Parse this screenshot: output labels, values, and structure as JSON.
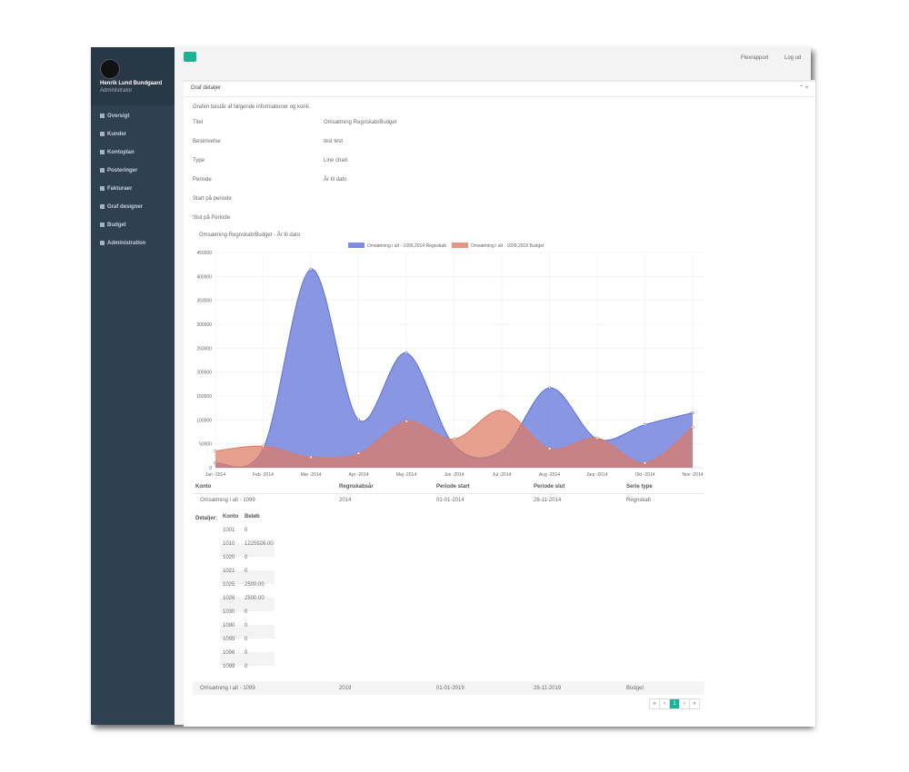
{
  "sidebar": {
    "user_name": "Henrik Lund Bundgaard",
    "user_role": "Administrator",
    "menu": [
      "Oversigt",
      "Kunder",
      "Kontoplan",
      "Posteringer",
      "Fakturaer",
      "Graf designer",
      "Budget",
      "Administration"
    ]
  },
  "topbar": {
    "links": [
      "Flexrapport",
      "Log ud"
    ]
  },
  "panel": {
    "title": "Graf detaljer",
    "intro": "Grafen består af følgende informationer og konti.",
    "fields": [
      {
        "label": "Titel",
        "value": "Omsætning Regnskab/Budget"
      },
      {
        "label": "Beskrivelse",
        "value": "test test"
      },
      {
        "label": "Type",
        "value": "Line chart"
      },
      {
        "label": "Periode",
        "value": "År til dato"
      },
      {
        "label": "Start på periode"
      },
      {
        "label": "Slut på Periode"
      }
    ],
    "chart_title": "Omsætning Regnskab/Budget - År til dato"
  },
  "chart_data": {
    "type": "line",
    "categories": [
      "Jan -2014",
      "Feb -2014",
      "Mar -2014",
      "Apr -2014",
      "Maj -2014",
      "Jun -2014",
      "Jul -2014",
      "Aug -2014",
      "Sep -2014",
      "Okt -2014",
      "Nov -2014"
    ],
    "series": [
      {
        "name": "Omsætning i alt - 1099,2014 Regnskab",
        "color": "#5b6fd8",
        "values": [
          10000,
          40000,
          415000,
          100000,
          240000,
          47000,
          35000,
          167000,
          60000,
          90000,
          115000
        ]
      },
      {
        "name": "Omsætning i alt - 1099,2019 Budget",
        "color": "#de7a62",
        "values": [
          35000,
          45000,
          22000,
          30000,
          97000,
          60000,
          120000,
          40000,
          62000,
          10000,
          85000
        ]
      }
    ],
    "ylim": [
      0,
      450000
    ],
    "yticks": [
      0,
      50000,
      100000,
      150000,
      200000,
      250000,
      300000,
      350000,
      400000,
      450000
    ],
    "grid": true,
    "legend": "top"
  },
  "table": {
    "headers": [
      "Konto",
      "Regnskabsår",
      "Periode start",
      "Periode slut",
      "Serie type"
    ],
    "rows": [
      [
        "Omsætning i alt - 1099",
        "2014",
        "01-01-2014",
        "28-11-2014",
        "Regnskab"
      ],
      [
        "Omsætning i alt - 1099",
        "2019",
        "01-01-2019",
        "28-11-2019",
        "Budget"
      ]
    ],
    "details_label": "Detaljer:",
    "details_headers": [
      "Konto",
      "Beløb"
    ],
    "details_rows": [
      [
        "1001",
        "0"
      ],
      [
        "1010",
        "1225926.00"
      ],
      [
        "1020",
        "0"
      ],
      [
        "1021",
        "0"
      ],
      [
        "1025",
        "2500.00"
      ],
      [
        "1026",
        "2500.00"
      ],
      [
        "1030",
        "0"
      ],
      [
        "1090",
        "0"
      ],
      [
        "1095",
        "0"
      ],
      [
        "1096",
        "0"
      ],
      [
        "1099",
        "0"
      ]
    ]
  },
  "pagination": [
    "«",
    "‹",
    "1",
    "›",
    "»"
  ]
}
